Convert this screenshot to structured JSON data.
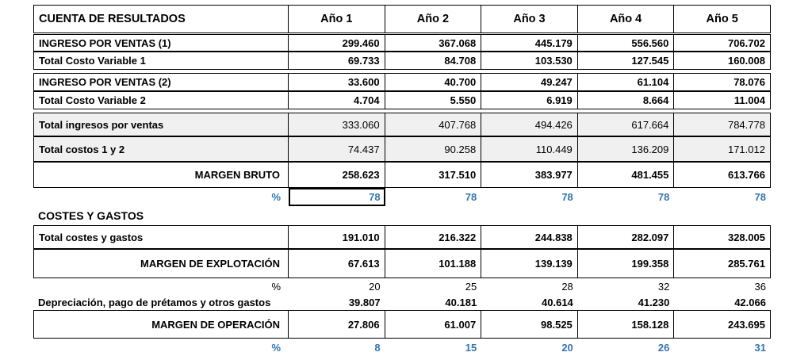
{
  "header": {
    "title": "CUENTA DE RESULTADOS",
    "years": [
      "Año 1",
      "Año 2",
      "Año 3",
      "Año 4",
      "Año 5"
    ]
  },
  "rows": {
    "ingreso1": {
      "label": "INGRESO POR VENTAS (1)",
      "values": [
        "299.460",
        "367.068",
        "445.179",
        "556.560",
        "706.702"
      ]
    },
    "costo1": {
      "label": "Total Costo Variable 1",
      "values": [
        "69.733",
        "84.708",
        "103.530",
        "127.545",
        "160.008"
      ]
    },
    "ingreso2": {
      "label": "INGRESO POR VENTAS (2)",
      "values": [
        "33.600",
        "40.700",
        "49.247",
        "61.104",
        "78.076"
      ]
    },
    "costo2": {
      "label": "Total Costo Variable 2",
      "values": [
        "4.704",
        "5.550",
        "6.919",
        "8.664",
        "11.004"
      ]
    },
    "total_ingresos": {
      "label": "Total ingresos por ventas",
      "values": [
        "333.060",
        "407.768",
        "494.426",
        "617.664",
        "784.778"
      ]
    },
    "total_costos": {
      "label": "Total costos 1 y 2",
      "values": [
        "74.437",
        "90.258",
        "110.449",
        "136.209",
        "171.012"
      ]
    },
    "margen_bruto": {
      "label": "MARGEN BRUTO",
      "values": [
        "258.623",
        "317.510",
        "383.977",
        "481.455",
        "613.766"
      ]
    },
    "pct_bruto": {
      "label": "%",
      "values": [
        "78",
        "78",
        "78",
        "78",
        "78"
      ]
    },
    "costes_gastos_title": {
      "label": "COSTES Y GASTOS"
    },
    "total_costes_gastos": {
      "label": "Total costes y gastos",
      "values": [
        "191.010",
        "216.322",
        "244.838",
        "282.097",
        "328.005"
      ]
    },
    "margen_explotacion": {
      "label": "MARGEN DE EXPLOTACIÓN",
      "values": [
        "67.613",
        "101.188",
        "139.139",
        "199.358",
        "285.761"
      ]
    },
    "pct_explotacion": {
      "label": "%",
      "values": [
        "20",
        "25",
        "28",
        "32",
        "36"
      ]
    },
    "depreciacion": {
      "label": "Depreciación, pago de prétamos y otros gastos",
      "values": [
        "39.807",
        "40.181",
        "40.614",
        "41.230",
        "42.066"
      ]
    },
    "margen_operacion": {
      "label": "MARGEN DE OPERACIÓN",
      "values": [
        "27.806",
        "61.007",
        "98.525",
        "158.128",
        "243.695"
      ]
    },
    "pct_operacion": {
      "label": "%",
      "values": [
        "8",
        "15",
        "20",
        "26",
        "31"
      ]
    }
  }
}
